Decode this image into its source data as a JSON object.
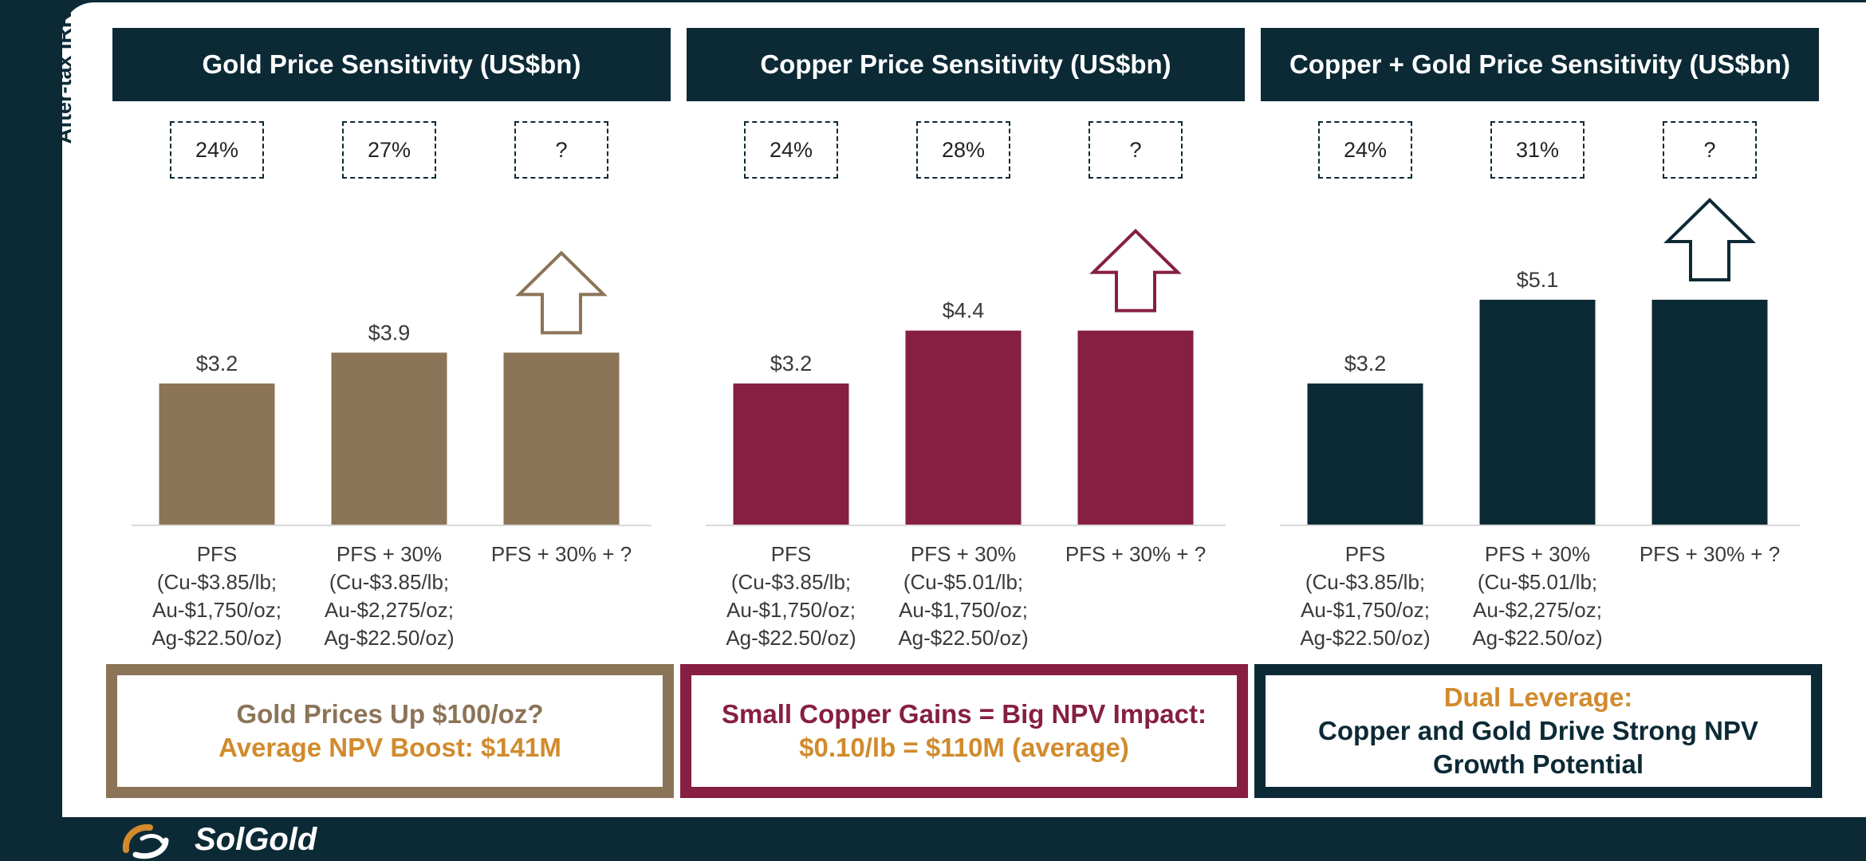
{
  "irr_label": "After-tax IRR",
  "brand": {
    "name": "SolGold"
  },
  "colors": {
    "gold": "#8b7457",
    "copper": "#861f41",
    "combined": "#0c2a36",
    "orange": "#d18b2d"
  },
  "chart_data": [
    {
      "type": "bar",
      "title": "Gold Price Sensitivity (US$bn)",
      "categories": [
        "PFS\n(Cu-$3.85/lb;\nAu-$1,750/oz;\nAg-$22.50/oz)",
        "PFS + 30%\n(Cu-$3.85/lb;\nAu-$2,275/oz;\nAg-$22.50/oz)",
        "PFS + 30% + ?"
      ],
      "values": [
        3.2,
        3.9,
        3.9
      ],
      "data_labels": [
        "$3.2",
        "$3.9",
        ""
      ],
      "irr": [
        "24%",
        "27%",
        "?"
      ],
      "color": "#8b7457",
      "callout": {
        "line1": "Gold Prices Up $100/oz?",
        "line2": "Average NPV Boost: $141M"
      }
    },
    {
      "type": "bar",
      "title": "Copper Price Sensitivity (US$bn)",
      "categories": [
        "PFS\n(Cu-$3.85/lb;\nAu-$1,750/oz;\nAg-$22.50/oz)",
        "PFS + 30%\n(Cu-$5.01/lb;\nAu-$1,750/oz;\nAg-$22.50/oz)",
        "PFS + 30% + ?"
      ],
      "values": [
        3.2,
        4.4,
        4.4
      ],
      "data_labels": [
        "$3.2",
        "$4.4",
        ""
      ],
      "irr": [
        "24%",
        "28%",
        "?"
      ],
      "color": "#861f41",
      "callout": {
        "line1": "Small Copper Gains = Big NPV Impact:",
        "line2": "$0.10/lb = $110M (average)"
      }
    },
    {
      "type": "bar",
      "title": "Copper + Gold Price Sensitivity (US$bn)",
      "categories": [
        "PFS\n(Cu-$3.85/lb;\nAu-$1,750/oz;\nAg-$22.50/oz)",
        "PFS + 30%\n(Cu-$5.01/lb;\nAu-$2,275/oz;\nAg-$22.50/oz)",
        "PFS + 30% + ?"
      ],
      "values": [
        3.2,
        5.1,
        5.1
      ],
      "data_labels": [
        "$3.2",
        "$5.1",
        ""
      ],
      "irr": [
        "24%",
        "31%",
        "?"
      ],
      "color": "#0c2a36",
      "callout": {
        "line1": "Dual Leverage:",
        "line2": "Copper and Gold Drive Strong NPV Growth Potential"
      }
    }
  ]
}
